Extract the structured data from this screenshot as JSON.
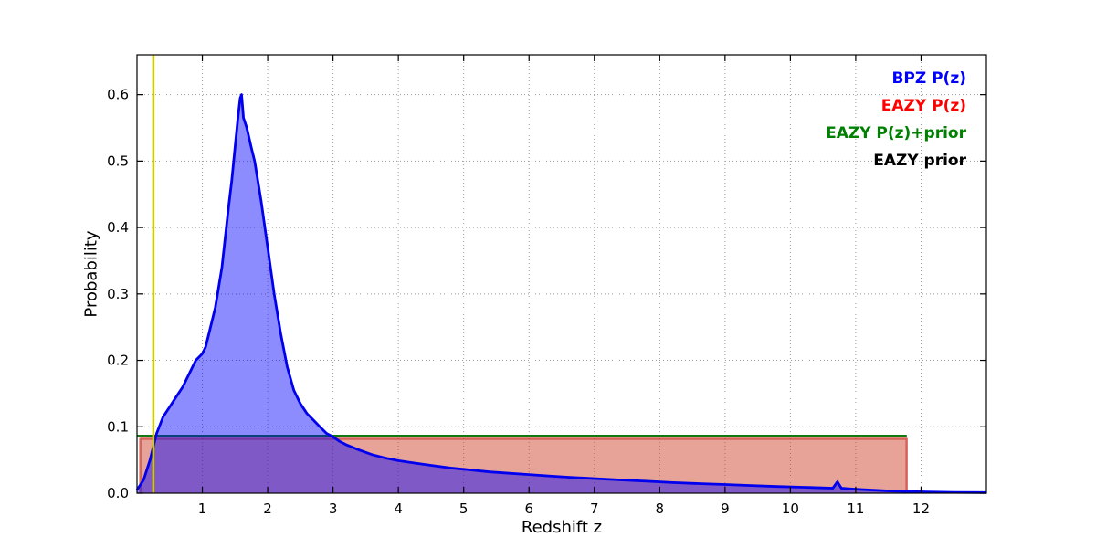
{
  "chart_data": {
    "type": "line",
    "title": "",
    "xlabel": "Redshift z",
    "ylabel": "Probability",
    "xlim": [
      0,
      13
    ],
    "ylim": [
      0,
      0.66
    ],
    "xticks": [
      1,
      2,
      3,
      4,
      5,
      6,
      7,
      8,
      9,
      10,
      11,
      12
    ],
    "xtick_labels": [
      "1",
      "2",
      "3",
      "4",
      "5",
      "6",
      "7",
      "8",
      "9",
      "10",
      "11",
      "12"
    ],
    "yticks": [
      0.0,
      0.1,
      0.2,
      0.3,
      0.4,
      0.5,
      0.6
    ],
    "ytick_labels": [
      "0.0",
      "0.1",
      "0.2",
      "0.3",
      "0.4",
      "0.5",
      "0.6"
    ],
    "grid": "dotted",
    "legend_position": "upper right",
    "draw_order": [
      3,
      1,
      2,
      0
    ],
    "series": [
      {
        "name": "BPZ P(z)",
        "legend_color": "#0000ff",
        "stroke": "#0000ee",
        "fill": "rgba(0,0,255,0.45)",
        "line_width": 2.8,
        "x": [
          0.0,
          0.1,
          0.2,
          0.3,
          0.4,
          0.5,
          0.6,
          0.7,
          0.8,
          0.85,
          0.9,
          0.95,
          1.0,
          1.05,
          1.1,
          1.2,
          1.3,
          1.4,
          1.45,
          1.5,
          1.55,
          1.58,
          1.6,
          1.63,
          1.68,
          1.75,
          1.8,
          1.9,
          2.0,
          2.1,
          2.2,
          2.3,
          2.4,
          2.5,
          2.6,
          2.7,
          2.8,
          2.9,
          3.0,
          3.1,
          3.2,
          3.4,
          3.6,
          3.8,
          4.0,
          4.2,
          4.5,
          4.8,
          5.1,
          5.4,
          5.7,
          6.0,
          6.3,
          6.6,
          7.0,
          7.4,
          7.8,
          8.2,
          8.6,
          9.0,
          9.4,
          9.8,
          10.2,
          10.5,
          10.65,
          10.72,
          10.78,
          10.85,
          11.0,
          11.2,
          11.5,
          11.8,
          12.1,
          12.5,
          13.0
        ],
        "y": [
          0.005,
          0.02,
          0.05,
          0.09,
          0.115,
          0.13,
          0.145,
          0.16,
          0.18,
          0.19,
          0.2,
          0.205,
          0.21,
          0.22,
          0.24,
          0.28,
          0.34,
          0.43,
          0.47,
          0.52,
          0.57,
          0.595,
          0.6,
          0.565,
          0.55,
          0.52,
          0.5,
          0.44,
          0.37,
          0.3,
          0.24,
          0.19,
          0.155,
          0.135,
          0.12,
          0.11,
          0.1,
          0.09,
          0.085,
          0.078,
          0.073,
          0.065,
          0.058,
          0.053,
          0.049,
          0.046,
          0.042,
          0.038,
          0.035,
          0.032,
          0.03,
          0.028,
          0.026,
          0.024,
          0.022,
          0.02,
          0.018,
          0.016,
          0.0145,
          0.013,
          0.0115,
          0.01,
          0.009,
          0.008,
          0.0075,
          0.017,
          0.0075,
          0.007,
          0.006,
          0.005,
          0.0035,
          0.0025,
          0.0018,
          0.0012,
          0.001
        ]
      },
      {
        "name": "EAZY P(z)",
        "legend_color": "#ff0000",
        "stroke": "rgba(200,45,35,0.65)",
        "fill": "rgba(204,51,26,0.45)",
        "line_width": 2.5,
        "x": [
          0.05,
          0.05,
          11.78,
          11.78
        ],
        "y": [
          0.0,
          0.082,
          0.082,
          0.0
        ]
      },
      {
        "name": "EAZY P(z)+prior",
        "legend_color": "#008000",
        "stroke": "#107a10",
        "fill": null,
        "line_width": 3,
        "x": [
          0.0,
          11.78
        ],
        "y": [
          0.086,
          0.086
        ]
      },
      {
        "name": "EAZY prior",
        "legend_color": "#000000",
        "stroke": "#000000",
        "fill": null,
        "line_width": 2,
        "x": [
          0.0,
          11.78
        ],
        "y": [
          0.086,
          0.086
        ]
      }
    ],
    "vline": {
      "x": 0.25,
      "color": "#cccc00",
      "line_width": 2.5
    }
  }
}
